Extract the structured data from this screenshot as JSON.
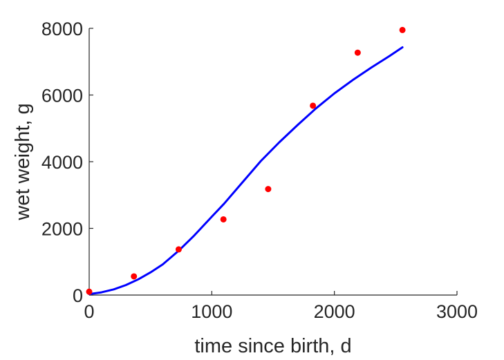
{
  "chart_data": {
    "type": "scatter",
    "xlabel": "time since birth, d",
    "ylabel": "wet weight, g",
    "xlim": [
      0,
      3000
    ],
    "ylim": [
      0,
      8000
    ],
    "xticks": [
      0,
      1000,
      2000,
      3000
    ],
    "yticks": [
      0,
      2000,
      4000,
      6000,
      8000
    ],
    "grid": false,
    "series": [
      {
        "kind": "scatter",
        "color": "#ff0000",
        "points": [
          {
            "x": 0,
            "y": 100
          },
          {
            "x": 365,
            "y": 560
          },
          {
            "x": 730,
            "y": 1370
          },
          {
            "x": 1095,
            "y": 2270
          },
          {
            "x": 1460,
            "y": 3180
          },
          {
            "x": 1825,
            "y": 5680
          },
          {
            "x": 2190,
            "y": 7270
          },
          {
            "x": 2555,
            "y": 7950
          }
        ]
      },
      {
        "kind": "line",
        "color": "#0000ff",
        "points": [
          {
            "x": 0,
            "y": 30
          },
          {
            "x": 100,
            "y": 80
          },
          {
            "x": 200,
            "y": 170
          },
          {
            "x": 300,
            "y": 300
          },
          {
            "x": 400,
            "y": 470
          },
          {
            "x": 500,
            "y": 680
          },
          {
            "x": 600,
            "y": 920
          },
          {
            "x": 730,
            "y": 1330
          },
          {
            "x": 850,
            "y": 1760
          },
          {
            "x": 1000,
            "y": 2350
          },
          {
            "x": 1100,
            "y": 2740
          },
          {
            "x": 1250,
            "y": 3380
          },
          {
            "x": 1400,
            "y": 4020
          },
          {
            "x": 1550,
            "y": 4580
          },
          {
            "x": 1700,
            "y": 5100
          },
          {
            "x": 1850,
            "y": 5600
          },
          {
            "x": 2000,
            "y": 6050
          },
          {
            "x": 2150,
            "y": 6450
          },
          {
            "x": 2300,
            "y": 6820
          },
          {
            "x": 2450,
            "y": 7170
          },
          {
            "x": 2555,
            "y": 7430
          }
        ]
      }
    ]
  }
}
